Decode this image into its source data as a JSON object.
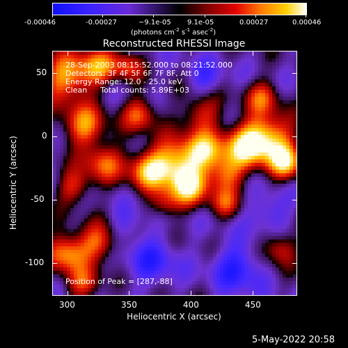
{
  "colorbar": {
    "ticks": [
      "-0.00046",
      "-0.00027",
      "−9.1e-05",
      "9.1e-05",
      "0.00027",
      "0.00046"
    ],
    "units_main": "(photons cm",
    "units_exp1": "-2",
    "units_mid": " s",
    "units_exp2": "-1",
    "units_mid2": " asec",
    "units_exp3": "-2",
    "units_end": ")"
  },
  "plot": {
    "title": "Reconstructed RHESSI Image",
    "xlabel": "Heliocentric X (arcsec)",
    "ylabel": "Heliocentric Y (arcsec)",
    "xticks": [
      "300",
      "350",
      "400",
      "450"
    ],
    "yticks": [
      "50",
      "0",
      "-50",
      "-100"
    ],
    "info_line1": "28-Sep-2003 08:15:52.000 to 08:21:52.000",
    "info_line2": "Detectors: 3F 4F 5F 6F 7F 8F, Att 0",
    "info_line3": "Energy Range: 12.0 - 25.0 keV",
    "info_line4_a": "Clean",
    "info_line4_b": "Total counts: 5.89E+03",
    "peak_text": "Position of Peak = [287,-88]"
  },
  "footer": {
    "date": "5-May-2022 20:58"
  },
  "colors": {
    "low": "#1010ff",
    "mid": "#000000",
    "high": "#ffffff"
  }
}
